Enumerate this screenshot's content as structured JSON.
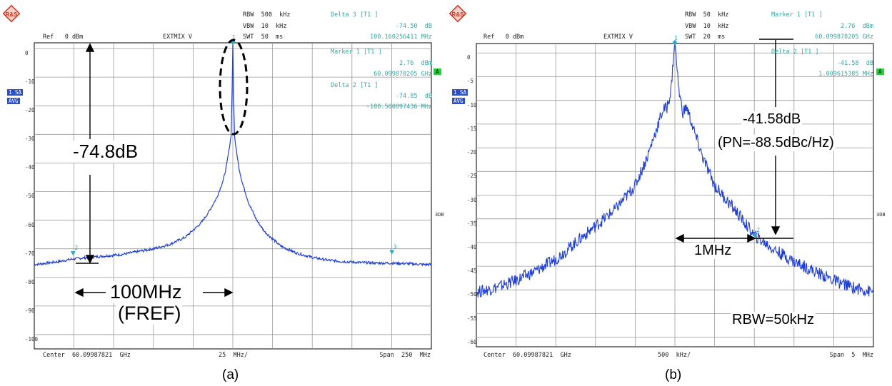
{
  "panels": [
    {
      "logo": "R&S",
      "header": {
        "ref": "Ref   0 dBm",
        "mix": "EXTMIX V",
        "rbw": "RBW  500  kHz",
        "vbw": "VBW  10  kHz",
        "swt": "SWT  50  ms"
      },
      "markers": {
        "d3_title": "Delta 3 [T1 ]",
        "d3_level": "-74.50  dB",
        "d3_freq": "100.160256411 MHz",
        "m1_title": "Marker 1 [T1 ]",
        "m1_level": "2.76  dBm",
        "m1_freq": "60.099878205 GHz",
        "d2_title": "Delta 2 [T1 ]",
        "d2_level": "-74.85  dB",
        "d2_freq": "-100.560897436 MHz"
      },
      "side": {
        "trace": "1 SA",
        "avg": "AVG",
        "a": "A",
        "db3": "3DB"
      },
      "footer": {
        "center": "Center  60.09987821  GHz",
        "div": "25  MHz/",
        "span": "Span  250  MHz"
      },
      "annotations": {
        "delta": "-74.8dB",
        "fref_value": "100MHz",
        "fref_name": "(FREF)"
      },
      "caption": "(a)",
      "marker_labels": [
        "1",
        "2",
        "3"
      ],
      "chart_data": {
        "type": "line",
        "title": "",
        "xlabel": "",
        "ylabel": "",
        "y_ticks": [
          "0",
          "-10",
          "-20",
          "-30",
          "-40",
          "-50",
          "-60",
          "-70",
          "-80",
          "-90",
          "-100"
        ],
        "ylim": [
          -105,
          2
        ],
        "xlim": [
          -125,
          125
        ],
        "x_unit": "MHz offset from 60.09987821 GHz",
        "series": [
          {
            "x": [
              -125,
              -120,
              -110,
              -100,
              -90,
              -80,
              -70,
              -60,
              -50,
              -40,
              -30,
              -20,
              -15,
              -10,
              -6,
              -4,
              -2,
              -1,
              -0.3,
              0,
              0.3,
              1,
              2,
              4,
              6,
              10,
              15,
              20,
              30,
              40,
              50,
              60,
              70,
              80,
              90,
              100,
              110,
              120,
              125
            ],
            "y": [
              -75.5,
              -75.2,
              -74.5,
              -73.5,
              -73,
              -72.5,
              -72,
              -71,
              -70,
              -68.5,
              -66,
              -61,
              -57,
              -52,
              -46,
              -41,
              -34,
              -30,
              -10,
              2.76,
              -10,
              -30,
              -35,
              -42,
              -47,
              -54,
              -60,
              -64,
              -69,
              -71.5,
              -73,
              -74,
              -74.5,
              -74.8,
              -75,
              -75,
              -75.2,
              -75.5,
              -75.5
            ]
          }
        ],
        "markers": [
          {
            "label": "1",
            "x": 0,
            "y": 2.76
          },
          {
            "label": "2",
            "x": -100.56,
            "y": -72.1
          },
          {
            "label": "3",
            "x": 100.16,
            "y": -71.7
          }
        ]
      }
    },
    {
      "logo": "R&S",
      "header": {
        "ref": "Ref   0 dBm",
        "mix": "EXTMIX V",
        "rbw": "RBW  50  kHz",
        "vbw": "VBW  10  kHz",
        "swt": "SWT  20  ms"
      },
      "markers": {
        "m1_title": "Marker 1 [T1 ]",
        "m1_level": "2.76  dBm",
        "m1_freq": "60.099878205 GHz",
        "d2_title": "Delta 2 [T1 ]",
        "d2_level": "-41.58  dB",
        "d2_freq": "1.009615385 MHz"
      },
      "side": {
        "trace": "1 SA",
        "avg": "AVG",
        "a": "A",
        "db3": "3DB"
      },
      "footer": {
        "center": "Center  60.09987821  GHz",
        "div": "500  kHz/",
        "span": "Span  5  MHz"
      },
      "annotations": {
        "delta": "-41.58dB",
        "pn": "(PN=-88.5dBc/Hz)",
        "offset": "1MHz",
        "rbw": "RBW=50kHz"
      },
      "caption": "(b)",
      "marker_labels": [
        "1",
        "2"
      ],
      "chart_data": {
        "type": "line",
        "title": "",
        "xlabel": "",
        "ylabel": "",
        "y_ticks": [
          "0",
          "-5",
          "-10",
          "-15",
          "-20",
          "-25",
          "-30",
          "-35",
          "-40",
          "-45",
          "-50",
          "-55",
          "-60"
        ],
        "ylim": [
          -62,
          2
        ],
        "xlim": [
          -2.5,
          2.5
        ],
        "x_unit": "MHz offset from 60.09987821 GHz",
        "series": [
          {
            "x": [
              -2.5,
              -2.25,
              -2.0,
              -1.75,
              -1.5,
              -1.25,
              -1.0,
              -0.75,
              -0.5,
              -0.35,
              -0.25,
              -0.15,
              -0.1,
              -0.05,
              0,
              0.05,
              0.1,
              0.15,
              0.25,
              0.35,
              0.5,
              0.75,
              1.0,
              1.25,
              1.5,
              1.75,
              2.0,
              2.25,
              2.5
            ],
            "y": [
              -50.5,
              -49.5,
              -48,
              -46,
              -43.5,
              -40,
              -36.5,
              -33,
              -28,
              -22,
              -17,
              -12,
              -11.5,
              -8,
              2.76,
              -8,
              -12.5,
              -11.5,
              -17,
              -22,
              -28,
              -33,
              -38.5,
              -41.5,
              -44,
              -46,
              -48,
              -49.5,
              -50.5
            ]
          }
        ],
        "markers": [
          {
            "label": "1",
            "x": 0,
            "y": 2.76
          },
          {
            "label": "2",
            "x": 1.0096,
            "y": -38.8
          }
        ]
      }
    }
  ]
}
